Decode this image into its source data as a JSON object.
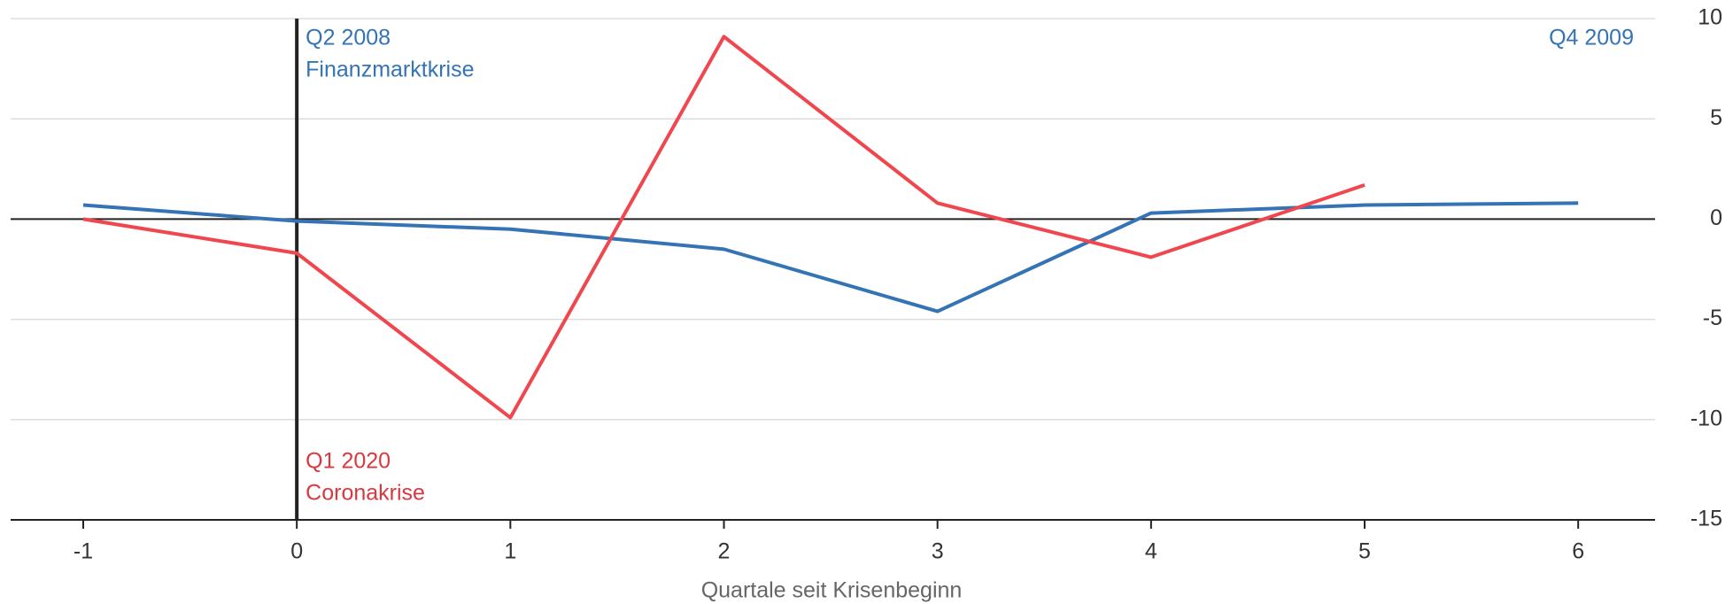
{
  "chart_data": {
    "type": "line",
    "x": [
      -1,
      0,
      1,
      2,
      3,
      4,
      5,
      6
    ],
    "series": [
      {
        "color": "#3474b4",
        "values": [
          0.7,
          -0.1,
          -0.5,
          -1.5,
          -4.6,
          0.3,
          0.7,
          0.8
        ]
      },
      {
        "color": "#f0474f",
        "values": [
          0,
          -1.7,
          -9.9,
          9.1,
          0.8,
          -1.9,
          1.7,
          null
        ]
      }
    ],
    "xlabel": "Quartale seit Krisenbeginn",
    "xlim": [
      -1.34,
      6.36
    ],
    "xticks": [
      -1,
      0,
      1,
      2,
      3,
      4,
      5,
      6
    ],
    "ylim": [
      -15,
      10
    ],
    "yticks": [
      -15,
      -10,
      -5,
      0,
      5,
      10
    ],
    "grid": true,
    "vline": 0,
    "annotations": [
      {
        "lines": [
          "Q2 2008",
          "Finanzmarktkrise"
        ],
        "color": "#3474b4"
      },
      {
        "lines": [
          "Q1 2020",
          "Coronakrise"
        ],
        "color": "#d9383f"
      },
      {
        "lines": [
          "Q4 2009"
        ],
        "color": "#3474b4"
      }
    ]
  }
}
